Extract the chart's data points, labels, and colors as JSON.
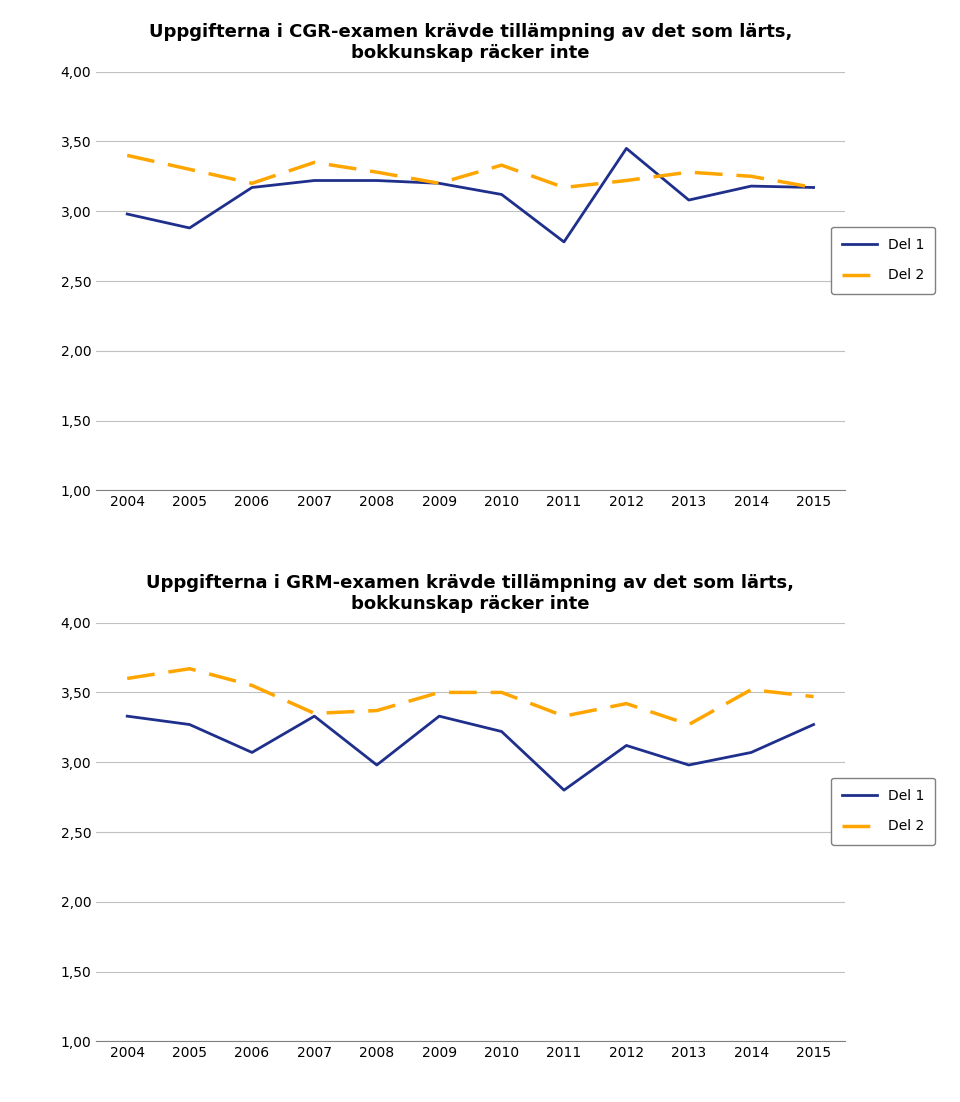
{
  "cgr_title": "Uppgifterna i CGR-examen krävde tillämpning av det som lärts,\nbokkunskap räcker inte",
  "grm_title": "Uppgifterna i GRM-examen krävde tillämpning av det som lärts,\nbokkunskap räcker inte",
  "years": [
    2004,
    2005,
    2006,
    2007,
    2008,
    2009,
    2010,
    2011,
    2012,
    2013,
    2014,
    2015
  ],
  "cgr_del1": [
    2.98,
    2.88,
    3.17,
    3.22,
    3.22,
    3.2,
    3.12,
    2.78,
    3.45,
    3.08,
    3.18,
    3.17
  ],
  "cgr_del2": [
    3.4,
    3.3,
    3.2,
    3.35,
    3.28,
    3.2,
    3.33,
    3.17,
    3.22,
    3.28,
    3.25,
    3.17
  ],
  "grm_del1": [
    3.33,
    3.27,
    3.07,
    3.33,
    2.98,
    3.33,
    3.22,
    2.8,
    3.12,
    2.98,
    3.07,
    3.27
  ],
  "grm_del2": [
    3.6,
    3.67,
    3.55,
    3.35,
    3.37,
    3.5,
    3.5,
    3.33,
    3.42,
    3.27,
    3.52,
    3.47
  ],
  "del1_color": "#1F2F8C",
  "del2_color": "#FFA500",
  "ylim_min": 1.0,
  "ylim_max": 4.0,
  "yticks": [
    1.0,
    1.5,
    2.0,
    2.5,
    3.0,
    3.5,
    4.0
  ],
  "legend_del1": "Del 1",
  "legend_del2": "Del 2",
  "title_fontsize": 13,
  "tick_fontsize": 10,
  "legend_fontsize": 10,
  "line_width": 2.0,
  "background_color": "#ffffff",
  "grid_color": "#C0C0C0",
  "spine_color": "#808080"
}
